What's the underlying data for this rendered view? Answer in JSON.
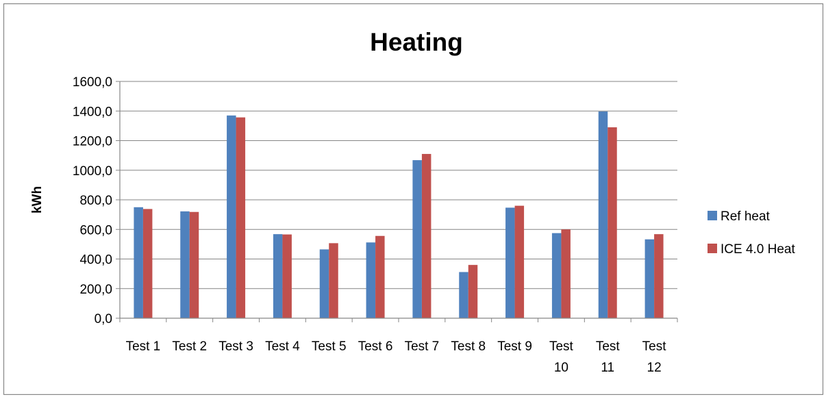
{
  "chart_data": {
    "type": "bar",
    "title": "Heating",
    "xlabel": "",
    "ylabel": "kWh",
    "ylim": [
      0,
      1600
    ],
    "ytick_step": 200,
    "ytick_labels": [
      "0,0",
      "200,0",
      "400,0",
      "600,0",
      "800,0",
      "1000,0",
      "1200,0",
      "1400,0",
      "1600,0"
    ],
    "categories": [
      "Test 1",
      "Test 2",
      "Test 3",
      "Test 4",
      "Test 5",
      "Test 6",
      "Test 7",
      "Test 8",
      "Test 9",
      "Test 10",
      "Test 11",
      "Test 12"
    ],
    "series": [
      {
        "name": "Ref heat",
        "color": "#4f81bd",
        "values": [
          750,
          722,
          1370,
          568,
          465,
          512,
          1068,
          312,
          747,
          575,
          1397,
          533
        ]
      },
      {
        "name": "ICE 4.0 Heat",
        "color": "#c0504d",
        "values": [
          738,
          718,
          1357,
          566,
          507,
          556,
          1110,
          360,
          760,
          600,
          1290,
          568
        ]
      }
    ],
    "grid": true,
    "legend": "right"
  }
}
